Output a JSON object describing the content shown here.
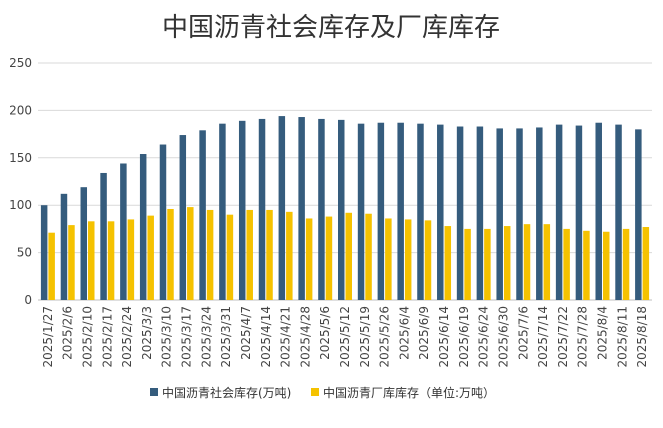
{
  "chart_data": {
    "type": "bar",
    "title": "中国沥青社会库存及厂库库存",
    "xlabel": "",
    "ylabel": "",
    "ylim": [
      0,
      250
    ],
    "yticks": [
      "0",
      "50",
      "100",
      "150",
      "200",
      "250"
    ],
    "grid": true,
    "legend_position": "bottom",
    "categories": [
      "2025/1/27",
      "2025/2/6",
      "2025/2/10",
      "2025/2/17",
      "2025/2/24",
      "2025/3/3",
      "2025/3/10",
      "2025/3/17",
      "2025/3/24",
      "2025/3/31",
      "2025/4/7",
      "2025/4/14",
      "2025/4/21",
      "2025/4/28",
      "2025/5/6",
      "2025/5/12",
      "2025/5/19",
      "2025/5/26",
      "2025/6/4",
      "2025/6/9",
      "2025/6/14",
      "2025/6/19",
      "2025/6/24",
      "2025/6/30",
      "2025/7/6",
      "2025/7/14",
      "2025/7/22",
      "2025/7/28",
      "2025/8/4",
      "2025/8/11",
      "2025/8/18"
    ],
    "series": [
      {
        "name": "中国沥青社会库存(万吨)",
        "color": "#355c7d",
        "values": [
          100,
          112,
          119,
          134,
          144,
          154,
          164,
          174,
          179,
          186,
          189,
          191,
          194,
          193,
          191,
          190,
          186,
          187,
          187,
          186,
          185,
          183,
          183,
          181,
          181,
          182,
          185,
          184,
          187,
          185,
          180
        ]
      },
      {
        "name": "中国沥青厂库库存（单位:万吨）",
        "color": "#f5c200",
        "values": [
          71,
          79,
          83,
          83,
          85,
          89,
          96,
          98,
          95,
          90,
          95,
          95,
          93,
          86,
          88,
          92,
          91,
          86,
          85,
          84,
          78,
          75,
          75,
          78,
          80,
          80,
          75,
          73,
          72,
          75,
          77
        ]
      }
    ]
  }
}
